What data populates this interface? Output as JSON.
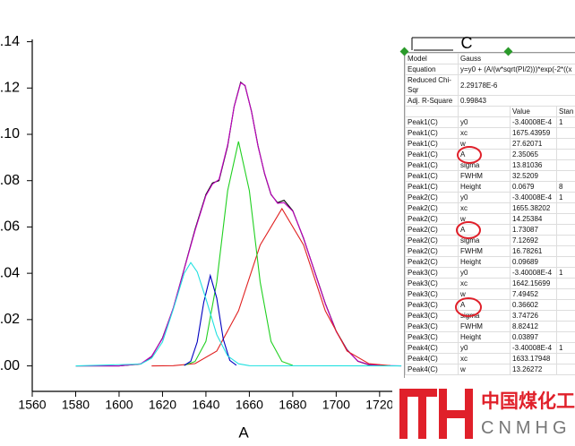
{
  "chart_data": {
    "type": "line",
    "x_label": "A",
    "xlim": [
      1560,
      1810
    ],
    "ylim": [
      -0.011,
      0.141
    ],
    "xticks": [
      1560,
      1580,
      1600,
      1620,
      1640,
      1660,
      1680,
      1700,
      1720
    ],
    "yticks": [
      {
        "value": 0.14,
        "label": ".14"
      },
      {
        "value": 0.12,
        "label": ".12"
      },
      {
        "value": 0.1,
        "label": ".10"
      },
      {
        "value": 0.08,
        "label": ".08"
      },
      {
        "value": 0.06,
        "label": ".06"
      },
      {
        "value": 0.04,
        "label": ".04"
      },
      {
        "value": 0.02,
        "label": ".02"
      },
      {
        "value": 0,
        "label": ".00"
      }
    ],
    "series": [
      {
        "color": "#000000",
        "x": [
          1580,
          1600,
          1610,
          1615,
          1620,
          1625,
          1630,
          1635,
          1640,
          1643,
          1646,
          1650,
          1653,
          1656,
          1658,
          1661,
          1664,
          1667,
          1670,
          1673,
          1676,
          1680,
          1685,
          1690,
          1695,
          1700,
          1705,
          1710,
          1715,
          1720
        ],
        "values": [
          0,
          0,
          0.0008,
          0.004,
          0.012,
          0.025,
          0.042,
          0.059,
          0.074,
          0.079,
          0.08,
          0.095,
          0.112,
          0.1225,
          0.121,
          0.11,
          0.095,
          0.083,
          0.074,
          0.0705,
          0.0715,
          0.067,
          0.055,
          0.041,
          0.027,
          0.015,
          0.007,
          0.002,
          0.0005,
          0.0005
        ]
      },
      {
        "color": "#c000c0",
        "x": [
          1580,
          1600,
          1610,
          1615,
          1620,
          1625,
          1630,
          1635,
          1640,
          1643,
          1646,
          1650,
          1653,
          1656,
          1658,
          1661,
          1664,
          1667,
          1670,
          1673,
          1676,
          1680,
          1685,
          1690,
          1695,
          1700,
          1705,
          1710,
          1715,
          1720,
          1730
        ],
        "values": [
          0,
          0,
          0.0009,
          0.0042,
          0.0118,
          0.0252,
          0.0418,
          0.0585,
          0.0735,
          0.0785,
          0.0805,
          0.0955,
          0.1118,
          0.1222,
          0.1212,
          0.1098,
          0.0948,
          0.0832,
          0.0742,
          0.0702,
          0.0705,
          0.0668,
          0.0552,
          0.0408,
          0.0268,
          0.0148,
          0.0068,
          0.0021,
          0.0006,
          0.0002,
          0
        ]
      },
      {
        "color": "#e02020",
        "x": [
          1615,
          1625,
          1635,
          1645,
          1655,
          1665,
          1675,
          1685,
          1695,
          1705,
          1715,
          1725
        ],
        "values": [
          0,
          0.0001,
          0.001,
          0.0064,
          0.0238,
          0.0522,
          0.0679,
          0.0522,
          0.0238,
          0.0064,
          0.001,
          0.0001
        ]
      },
      {
        "color": "#20d020",
        "x": [
          1630,
          1635,
          1640,
          1645,
          1650,
          1655,
          1660,
          1665,
          1670,
          1675,
          1680
        ],
        "values": [
          0.0002,
          0.0019,
          0.0106,
          0.0362,
          0.0757,
          0.0969,
          0.0757,
          0.0362,
          0.0106,
          0.0019,
          0.0002
        ]
      },
      {
        "color": "#0000c0",
        "x": [
          1630,
          1633,
          1636,
          1639,
          1642,
          1645,
          1648,
          1651,
          1654
        ],
        "values": [
          0.0002,
          0.002,
          0.0103,
          0.0275,
          0.039,
          0.0293,
          0.0115,
          0.0024,
          0.0003
        ]
      },
      {
        "color": "#20e0e0",
        "x": [
          1580,
          1610,
          1615,
          1620,
          1625,
          1630,
          1633,
          1636,
          1640,
          1645,
          1650,
          1655,
          1660,
          1730
        ],
        "values": [
          0,
          0.0008,
          0.0033,
          0.0103,
          0.0246,
          0.04,
          0.0446,
          0.0406,
          0.029,
          0.0135,
          0.0043,
          0.0009,
          0.0001,
          0
        ]
      }
    ]
  },
  "table": {
    "title": "C",
    "info": [
      [
        "Model",
        "Gauss"
      ],
      [
        "Equation",
        "y=y0 + (A/(w*sqrt(PI/2)))*exp(-2*((x"
      ],
      [
        "Reduced Chi-Sqr",
        "2.29178E-6"
      ],
      [
        "Adj. R-Square",
        "0.99843"
      ]
    ],
    "columns": [
      "Value",
      "Stan"
    ],
    "rows": [
      [
        "Peak1(C)",
        "y0",
        "-3.40008E-4",
        "1"
      ],
      [
        "Peak1(C)",
        "xc",
        "1675.43959"
      ],
      [
        "Peak1(C)",
        "w",
        "27.62071"
      ],
      [
        "Peak1(C)",
        "A",
        "2.35065"
      ],
      [
        "Peak1(C)",
        "sigma",
        "13.81036"
      ],
      [
        "Peak1(C)",
        "FWHM",
        "32.5209"
      ],
      [
        "Peak1(C)",
        "Height",
        "0.0679",
        "8"
      ],
      [
        "Peak2(C)",
        "y0",
        "-3.40008E-4",
        "1"
      ],
      [
        "Peak2(C)",
        "xc",
        "1655.38202"
      ],
      [
        "Peak2(C)",
        "w",
        "14.25384"
      ],
      [
        "Peak2(C)",
        "A",
        "1.73087"
      ],
      [
        "Peak2(C)",
        "sigma",
        "7.12692"
      ],
      [
        "Peak2(C)",
        "FWHM",
        "16.78261"
      ],
      [
        "Peak2(C)",
        "Height",
        "0.09689"
      ],
      [
        "Peak3(C)",
        "y0",
        "-3.40008E-4",
        "1"
      ],
      [
        "Peak3(C)",
        "xc",
        "1642.15699"
      ],
      [
        "Peak3(C)",
        "w",
        "7.49452"
      ],
      [
        "Peak3(C)",
        "A",
        "0.36602"
      ],
      [
        "Peak3(C)",
        "sigma",
        "3.74726"
      ],
      [
        "Peak3(C)",
        "FWHM",
        "8.82412"
      ],
      [
        "Peak3(C)",
        "Height",
        "0.03897"
      ],
      [
        "Peak4(C)",
        "y0",
        "-3.40008E-4",
        "1"
      ],
      [
        "Peak4(C)",
        "xc",
        "1633.17948"
      ],
      [
        "Peak4(C)",
        "w",
        "13.26272"
      ]
    ]
  },
  "watermark": {
    "name": "中国煤化工",
    "code": "CNMHG"
  }
}
